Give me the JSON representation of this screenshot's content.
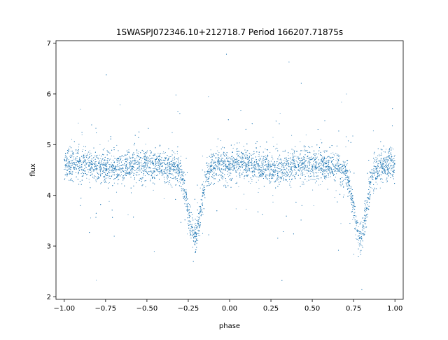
{
  "chart_data": {
    "type": "scatter",
    "title": "1SWASPJ072346.10+212718.7 Period 166207.71875s",
    "xlabel": "phase",
    "ylabel": "flux",
    "xlim": [
      -1.05,
      1.05
    ],
    "ylim": [
      1.95,
      7.05
    ],
    "x_ticks": [
      -1.0,
      -0.75,
      -0.5,
      -0.25,
      0.0,
      0.25,
      0.5,
      0.75,
      1.0
    ],
    "x_tick_labels": [
      "−1.00",
      "−0.75",
      "−0.50",
      "−0.25",
      "0.00",
      "0.25",
      "0.50",
      "0.75",
      "1.00"
    ],
    "y_ticks": [
      2,
      3,
      4,
      5,
      6,
      7
    ],
    "y_tick_labels": [
      "2",
      "3",
      "4",
      "5",
      "6",
      "7"
    ],
    "grid": false,
    "legend": "none",
    "marker_color": "#1f77b4",
    "series": [
      {
        "profile_phase": [
          -1.0,
          -0.95,
          -0.9,
          -0.85,
          -0.8,
          -0.75,
          -0.7,
          -0.65,
          -0.6,
          -0.55,
          -0.5,
          -0.45,
          -0.4,
          -0.35,
          -0.3,
          -0.28,
          -0.26,
          -0.24,
          -0.22,
          -0.21,
          -0.2,
          -0.18,
          -0.16,
          -0.14,
          -0.12,
          -0.1,
          -0.05,
          0.0,
          0.05,
          0.1,
          0.15,
          0.2,
          0.25,
          0.3,
          0.35,
          0.4,
          0.45,
          0.5,
          0.55,
          0.6,
          0.65,
          0.7,
          0.72,
          0.74,
          0.76,
          0.78,
          0.79,
          0.8,
          0.82,
          0.84,
          0.86,
          0.88,
          0.9,
          0.95,
          1.0
        ],
        "profile_flux": [
          4.6,
          4.62,
          4.6,
          4.58,
          4.55,
          4.55,
          4.52,
          4.55,
          4.6,
          4.62,
          4.6,
          4.58,
          4.58,
          4.55,
          4.45,
          4.25,
          3.9,
          3.5,
          3.2,
          3.15,
          3.25,
          3.6,
          4.0,
          4.35,
          4.5,
          4.55,
          4.6,
          4.62,
          4.62,
          4.6,
          4.58,
          4.55,
          4.5,
          4.5,
          4.55,
          4.6,
          4.62,
          4.62,
          4.6,
          4.58,
          4.55,
          4.45,
          4.25,
          3.9,
          3.55,
          3.25,
          3.2,
          3.25,
          3.55,
          3.95,
          4.3,
          4.48,
          4.55,
          4.6,
          4.6
        ],
        "scatter_sigma": 0.15,
        "n_points": 9000
      }
    ]
  }
}
